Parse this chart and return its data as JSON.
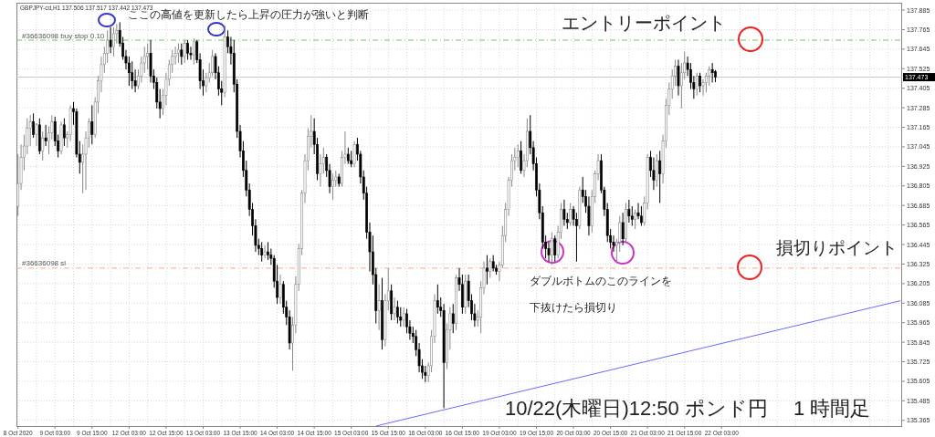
{
  "chart_data": {
    "type": "candlestick",
    "title": "GBPJPY-cd,H1  137.506 137.517 137.442 137.473",
    "categories": [
      "8 Oct 2020",
      null,
      null,
      null,
      null,
      null,
      null,
      null,
      null,
      null,
      null,
      null,
      "9 Oct 03:00",
      null,
      null,
      null,
      null,
      null,
      null,
      null,
      null,
      null,
      null,
      null,
      "9 Oct 15:00",
      null,
      null,
      null,
      null,
      null,
      null,
      null,
      null,
      null,
      null,
      null,
      "12 Oct 03:00",
      null,
      null,
      null,
      null,
      null,
      null,
      null,
      null,
      null,
      null,
      null,
      "12 Oct 15:00",
      null,
      null,
      null,
      null,
      null,
      null,
      null,
      null,
      null,
      null,
      null,
      "13 Oct 03:00",
      null,
      null,
      null,
      null,
      null,
      null,
      null,
      null,
      null,
      null,
      null,
      "13 Oct 15:00",
      null,
      null,
      null,
      null,
      null,
      null,
      null,
      null,
      null,
      null,
      null,
      "14 Oct 03:00",
      null,
      null,
      null,
      null,
      null,
      null,
      null,
      null,
      null,
      null,
      null,
      "14 Oct 15:00",
      null,
      null,
      null,
      null,
      null,
      null,
      null,
      null,
      null,
      null,
      null,
      "15 Oct 03:00",
      null,
      null,
      null,
      null,
      null,
      null,
      null,
      null,
      null,
      null,
      null,
      "15 Oct 15:00",
      null,
      null,
      null,
      null,
      null,
      null,
      null,
      null,
      null,
      null,
      null,
      "16 Oct 03:00",
      null,
      null,
      null,
      null,
      null,
      null,
      null,
      null,
      null,
      null,
      null,
      "16 Oct 15:00",
      null,
      null,
      null,
      null,
      null,
      null,
      null,
      null,
      null,
      null,
      null,
      "19 Oct 03:00",
      null,
      null,
      null,
      null,
      null,
      null,
      null,
      null,
      null,
      null,
      null,
      "19 Oct 15:00",
      null,
      null,
      null,
      null,
      null,
      null,
      null,
      null,
      null,
      null,
      null,
      "20 Oct 03:00",
      null,
      null,
      null,
      null,
      null,
      null,
      null,
      null,
      null,
      null,
      null,
      "20 Oct 15:00",
      null,
      null,
      null,
      null,
      null,
      null,
      null,
      null,
      null,
      null,
      null,
      "21 Oct 03:00",
      null,
      null,
      null,
      null,
      null,
      null,
      null,
      null,
      null,
      null,
      null,
      "21 Oct 15:00",
      null,
      null,
      null,
      null,
      null,
      null,
      null,
      null,
      null,
      null,
      null,
      "22 Oct 03:00",
      null,
      null,
      null,
      null,
      null,
      null,
      null,
      null,
      null,
      null,
      null,
      null,
      null,
      null,
      null,
      null,
      null,
      null,
      null,
      null,
      null,
      null,
      null,
      null,
      null,
      null,
      null,
      null,
      null,
      null,
      null,
      null,
      null,
      null,
      null,
      null,
      null,
      null,
      null,
      null,
      null,
      null,
      null,
      null,
      null,
      null,
      null,
      null,
      null,
      null,
      null,
      null,
      null,
      null,
      null,
      null,
      null,
      null
    ],
    "ohlc": [
      [
        136.68,
        137.0,
        136.62,
        136.82
      ],
      [
        136.82,
        137.06,
        136.78,
        136.98
      ],
      [
        136.98,
        137.12,
        136.9,
        137.05
      ],
      [
        137.05,
        137.22,
        137.0,
        137.16
      ],
      [
        137.16,
        137.24,
        137.05,
        137.2
      ],
      [
        137.2,
        137.25,
        137.1,
        137.12
      ],
      [
        137.12,
        137.19,
        137.05,
        137.18
      ],
      [
        137.18,
        137.22,
        137.0,
        137.02
      ],
      [
        137.02,
        137.14,
        136.96,
        137.1
      ],
      [
        137.1,
        137.18,
        137.05,
        137.08
      ],
      [
        137.08,
        137.17,
        137.0,
        137.13
      ],
      [
        137.13,
        137.24,
        137.09,
        137.2
      ],
      [
        137.2,
        137.23,
        137.05,
        137.08
      ],
      [
        137.08,
        137.12,
        136.98,
        137.02
      ],
      [
        137.02,
        137.2,
        137.0,
        137.18
      ],
      [
        137.18,
        137.22,
        137.05,
        137.1
      ],
      [
        137.1,
        137.14,
        137.04,
        137.12
      ],
      [
        137.12,
        137.3,
        137.08,
        137.28
      ],
      [
        137.28,
        137.32,
        137.18,
        137.26
      ],
      [
        137.26,
        137.28,
        136.98,
        137.0
      ],
      [
        137.0,
        137.08,
        136.88,
        136.95
      ],
      [
        136.95,
        137.06,
        136.76,
        137.0
      ],
      [
        137.0,
        137.14,
        136.78,
        137.1
      ],
      [
        137.1,
        137.22,
        137.04,
        137.2
      ],
      [
        137.2,
        137.3,
        137.06,
        137.12
      ],
      [
        137.12,
        137.35,
        137.1,
        137.32
      ],
      [
        137.32,
        137.48,
        137.25,
        137.45
      ],
      [
        137.45,
        137.6,
        137.38,
        137.55
      ],
      [
        137.55,
        137.66,
        137.5,
        137.62
      ],
      [
        137.62,
        137.76,
        137.56,
        137.7
      ],
      [
        137.7,
        137.78,
        137.62,
        137.66
      ],
      [
        137.66,
        137.78,
        137.6,
        137.74
      ],
      [
        137.74,
        137.8,
        137.68,
        137.76
      ],
      [
        137.76,
        137.81,
        137.66,
        137.68
      ],
      [
        137.68,
        137.72,
        137.58,
        137.6
      ],
      [
        137.6,
        137.64,
        137.52,
        137.56
      ],
      [
        137.56,
        137.6,
        137.42,
        137.5
      ],
      [
        137.5,
        137.57,
        137.4,
        137.45
      ],
      [
        137.45,
        137.52,
        137.38,
        137.42
      ],
      [
        137.42,
        137.52,
        137.4,
        137.48
      ],
      [
        137.48,
        137.6,
        137.44,
        137.56
      ],
      [
        137.56,
        137.66,
        137.5,
        137.6
      ],
      [
        137.6,
        137.68,
        137.52,
        137.62
      ],
      [
        137.62,
        137.7,
        137.44,
        137.48
      ],
      [
        137.48,
        137.52,
        137.4,
        137.44
      ],
      [
        137.44,
        137.47,
        137.28,
        137.32
      ],
      [
        137.32,
        137.4,
        137.22,
        137.28
      ],
      [
        137.28,
        137.4,
        137.24,
        137.36
      ],
      [
        137.36,
        137.5,
        137.3,
        137.46
      ],
      [
        137.46,
        137.58,
        137.42,
        137.55
      ],
      [
        137.55,
        137.64,
        137.5,
        137.6
      ],
      [
        137.6,
        137.66,
        137.55,
        137.62
      ],
      [
        137.62,
        137.68,
        137.56,
        137.64
      ],
      [
        137.64,
        137.68,
        137.55,
        137.6
      ],
      [
        137.6,
        137.7,
        137.56,
        137.68
      ],
      [
        137.68,
        137.7,
        137.58,
        137.62
      ],
      [
        137.62,
        137.66,
        137.58,
        137.61
      ],
      [
        137.61,
        137.71,
        137.55,
        137.69
      ],
      [
        137.69,
        137.7,
        137.56,
        137.58
      ],
      [
        137.58,
        137.62,
        137.4,
        137.45
      ],
      [
        137.45,
        137.52,
        137.36,
        137.42
      ],
      [
        137.42,
        137.5,
        137.38,
        137.47
      ],
      [
        137.47,
        137.56,
        137.44,
        137.5
      ],
      [
        137.5,
        137.64,
        137.48,
        137.6
      ],
      [
        137.6,
        137.62,
        137.46,
        137.5
      ],
      [
        137.5,
        137.54,
        137.36,
        137.4
      ],
      [
        137.4,
        137.45,
        137.3,
        137.38
      ],
      [
        137.38,
        137.79,
        137.35,
        137.72
      ],
      [
        137.72,
        137.76,
        137.62,
        137.66
      ],
      [
        137.66,
        137.72,
        137.55,
        137.62
      ],
      [
        137.62,
        137.7,
        137.38,
        137.43
      ],
      [
        137.43,
        137.46,
        137.1,
        137.14
      ],
      [
        137.14,
        137.18,
        136.98,
        137.02
      ],
      [
        137.02,
        137.08,
        136.86,
        136.9
      ],
      [
        136.9,
        136.96,
        136.74,
        136.78
      ],
      [
        136.78,
        136.82,
        136.62,
        136.66
      ],
      [
        136.66,
        136.7,
        136.5,
        136.56
      ],
      [
        136.56,
        136.6,
        136.4,
        136.44
      ],
      [
        136.44,
        136.48,
        136.38,
        136.42
      ],
      [
        136.42,
        136.46,
        136.34,
        136.38
      ],
      [
        136.38,
        136.44,
        136.36,
        136.4
      ],
      [
        136.4,
        136.46,
        136.35,
        136.38
      ],
      [
        136.38,
        136.42,
        136.32,
        136.36
      ],
      [
        136.36,
        136.38,
        136.18,
        136.22
      ],
      [
        136.22,
        136.32,
        136.08,
        136.12
      ],
      [
        136.12,
        136.26,
        136.08,
        136.2
      ],
      [
        136.2,
        136.22,
        136.02,
        136.06
      ],
      [
        136.06,
        136.1,
        135.95,
        136.0
      ],
      [
        136.0,
        136.04,
        135.8,
        135.84
      ],
      [
        135.84,
        136.0,
        135.67,
        135.95
      ],
      [
        135.95,
        136.25,
        135.9,
        136.2
      ],
      [
        136.2,
        136.45,
        136.16,
        136.42
      ],
      [
        136.42,
        136.78,
        136.38,
        136.76
      ],
      [
        136.76,
        137.0,
        136.7,
        136.96
      ],
      [
        136.96,
        137.16,
        136.9,
        137.11
      ],
      [
        137.11,
        137.24,
        137.04,
        137.14
      ],
      [
        137.14,
        137.22,
        137.0,
        137.06
      ],
      [
        137.06,
        137.1,
        136.84,
        136.88
      ],
      [
        136.88,
        137.0,
        136.8,
        136.94
      ],
      [
        136.94,
        137.04,
        136.88,
        136.98
      ],
      [
        136.98,
        137.0,
        136.86,
        136.9
      ],
      [
        136.9,
        136.94,
        136.76,
        136.8
      ],
      [
        136.8,
        136.88,
        136.72,
        136.84
      ],
      [
        136.84,
        136.9,
        136.8,
        136.86
      ],
      [
        136.86,
        136.88,
        136.8,
        136.82
      ],
      [
        136.82,
        137.02,
        136.8,
        136.98
      ],
      [
        136.98,
        137.14,
        136.94,
        137.0
      ],
      [
        137.0,
        137.04,
        136.94,
        136.96
      ],
      [
        136.96,
        137.02,
        136.92,
        136.94
      ],
      [
        136.94,
        137.08,
        136.92,
        137.06
      ],
      [
        137.06,
        137.1,
        136.96,
        137.0
      ],
      [
        137.0,
        137.02,
        136.82,
        136.86
      ],
      [
        136.86,
        136.9,
        136.72,
        136.76
      ],
      [
        136.76,
        136.8,
        136.48,
        136.52
      ],
      [
        136.52,
        136.58,
        136.28,
        136.4
      ],
      [
        136.4,
        136.5,
        136.2,
        136.26
      ],
      [
        136.26,
        136.3,
        135.96,
        136.04
      ],
      [
        136.04,
        136.2,
        135.92,
        136.1
      ],
      [
        136.1,
        136.24,
        135.8,
        135.86
      ],
      [
        135.86,
        136.14,
        135.82,
        136.1
      ],
      [
        136.1,
        136.3,
        136.04,
        136.16
      ],
      [
        136.16,
        136.2,
        135.98,
        136.02
      ],
      [
        136.02,
        136.12,
        135.98,
        136.06
      ],
      [
        136.06,
        136.1,
        135.96,
        136.0
      ],
      [
        136.0,
        136.06,
        135.94,
        135.98
      ],
      [
        135.98,
        136.06,
        135.94,
        136.02
      ],
      [
        136.02,
        136.05,
        135.9,
        135.94
      ],
      [
        135.94,
        135.98,
        135.86,
        135.9
      ],
      [
        135.9,
        135.94,
        135.84,
        135.88
      ],
      [
        135.88,
        135.92,
        135.76,
        135.8
      ],
      [
        135.8,
        135.84,
        135.66,
        135.7
      ],
      [
        135.7,
        135.74,
        135.62,
        135.66
      ],
      [
        135.66,
        135.7,
        135.6,
        135.64
      ],
      [
        135.64,
        135.72,
        135.6,
        135.7
      ],
      [
        135.7,
        135.92,
        135.66,
        135.88
      ],
      [
        135.88,
        136.14,
        135.84,
        136.1
      ],
      [
        136.1,
        136.2,
        136.02,
        136.06
      ],
      [
        136.06,
        136.12,
        136.0,
        136.04
      ],
      [
        136.04,
        136.08,
        135.44,
        135.72
      ],
      [
        135.72,
        135.96,
        135.68,
        135.92
      ],
      [
        135.92,
        136.06,
        135.8,
        136.02
      ],
      [
        136.02,
        136.08,
        135.9,
        135.96
      ],
      [
        135.96,
        136.26,
        135.92,
        136.24
      ],
      [
        136.24,
        136.3,
        136.16,
        136.2
      ],
      [
        136.2,
        136.26,
        136.02,
        136.06
      ],
      [
        136.06,
        136.26,
        136.02,
        136.22
      ],
      [
        136.22,
        136.26,
        136.06,
        136.1
      ],
      [
        136.1,
        136.14,
        135.98,
        136.02
      ],
      [
        136.02,
        136.08,
        135.94,
        135.98
      ],
      [
        135.98,
        136.04,
        135.94,
        136.0
      ],
      [
        136.0,
        136.22,
        135.9,
        136.18
      ],
      [
        136.18,
        136.34,
        136.14,
        136.3
      ],
      [
        136.3,
        136.38,
        136.2,
        136.28
      ],
      [
        136.28,
        136.36,
        136.24,
        136.34
      ],
      [
        136.34,
        136.38,
        136.28,
        136.3
      ],
      [
        136.3,
        136.32,
        136.26,
        136.28
      ],
      [
        136.28,
        136.34,
        136.22,
        136.32
      ],
      [
        136.32,
        136.56,
        136.3,
        136.5
      ],
      [
        136.5,
        136.7,
        136.46,
        136.66
      ],
      [
        136.66,
        136.86,
        136.62,
        136.84
      ],
      [
        136.84,
        137.0,
        136.8,
        136.96
      ],
      [
        136.96,
        137.04,
        136.9,
        136.98
      ],
      [
        136.98,
        137.06,
        136.92,
        137.02
      ],
      [
        137.02,
        137.08,
        136.88,
        136.9
      ],
      [
        136.9,
        137.0,
        136.86,
        136.96
      ],
      [
        136.96,
        137.22,
        136.92,
        137.14
      ],
      [
        137.14,
        137.24,
        137.0,
        137.04
      ],
      [
        137.04,
        137.08,
        136.9,
        136.94
      ],
      [
        136.94,
        136.98,
        136.74,
        136.78
      ],
      [
        136.78,
        136.82,
        136.6,
        136.64
      ],
      [
        136.64,
        136.68,
        136.42,
        136.46
      ],
      [
        136.46,
        136.5,
        136.36,
        136.42
      ],
      [
        136.42,
        136.46,
        136.34,
        136.38
      ],
      [
        136.38,
        136.52,
        136.32,
        136.48
      ],
      [
        136.48,
        136.5,
        136.34,
        136.38
      ],
      [
        136.38,
        136.56,
        136.36,
        136.52
      ],
      [
        136.52,
        136.7,
        136.48,
        136.66
      ],
      [
        136.66,
        136.72,
        136.56,
        136.6
      ],
      [
        136.6,
        136.64,
        136.54,
        136.58
      ],
      [
        136.58,
        136.7,
        136.56,
        136.66
      ],
      [
        136.66,
        136.68,
        136.56,
        136.6
      ],
      [
        136.6,
        136.64,
        136.34,
        136.56
      ],
      [
        136.56,
        136.8,
        136.54,
        136.78
      ],
      [
        136.78,
        136.86,
        136.7,
        136.74
      ],
      [
        136.74,
        136.78,
        136.64,
        136.68
      ],
      [
        136.68,
        136.74,
        136.5,
        136.56
      ],
      [
        136.56,
        136.78,
        136.52,
        136.74
      ],
      [
        136.74,
        136.9,
        136.7,
        136.88
      ],
      [
        136.88,
        137.0,
        136.84,
        136.96
      ],
      [
        136.96,
        137.0,
        136.76,
        136.78
      ],
      [
        136.78,
        136.8,
        136.62,
        136.66
      ],
      [
        136.66,
        136.7,
        136.46,
        136.5
      ],
      [
        136.5,
        136.54,
        136.42,
        136.46
      ],
      [
        136.46,
        136.5,
        136.4,
        136.44
      ],
      [
        136.44,
        136.48,
        136.33,
        136.46
      ],
      [
        136.46,
        136.62,
        136.4,
        136.58
      ],
      [
        136.58,
        136.64,
        136.44,
        136.48
      ],
      [
        136.48,
        136.7,
        136.46,
        136.66
      ],
      [
        136.66,
        136.72,
        136.58,
        136.62
      ],
      [
        136.62,
        136.68,
        136.56,
        136.6
      ],
      [
        136.6,
        136.66,
        136.54,
        136.64
      ],
      [
        136.64,
        136.7,
        136.6,
        136.62
      ],
      [
        136.62,
        136.68,
        136.56,
        136.58
      ],
      [
        136.58,
        136.74,
        136.56,
        136.7
      ],
      [
        136.7,
        137.0,
        136.66,
        136.98
      ],
      [
        136.98,
        137.02,
        136.86,
        136.9
      ],
      [
        136.9,
        136.98,
        136.78,
        136.84
      ],
      [
        136.84,
        137.0,
        136.8,
        136.96
      ],
      [
        136.96,
        137.02,
        136.7,
        136.88
      ],
      [
        136.88,
        137.12,
        136.82,
        137.08
      ],
      [
        137.08,
        137.34,
        137.04,
        137.3
      ],
      [
        137.3,
        137.44,
        137.24,
        137.4
      ],
      [
        137.4,
        137.52,
        137.34,
        137.48
      ],
      [
        137.48,
        137.58,
        137.42,
        137.54
      ],
      [
        137.54,
        137.58,
        137.36,
        137.42
      ],
      [
        137.42,
        137.56,
        137.28,
        137.5
      ],
      [
        137.5,
        137.63,
        137.46,
        137.56
      ],
      [
        137.56,
        137.6,
        137.48,
        137.52
      ],
      [
        137.52,
        137.56,
        137.4,
        137.44
      ],
      [
        137.44,
        137.48,
        137.34,
        137.4
      ],
      [
        137.4,
        137.5,
        137.36,
        137.48
      ],
      [
        137.48,
        137.5,
        137.38,
        137.42
      ],
      [
        137.42,
        137.46,
        137.36,
        137.44
      ],
      [
        137.44,
        137.5,
        137.38,
        137.48
      ],
      [
        137.48,
        137.54,
        137.42,
        137.52
      ],
      [
        137.52,
        137.56,
        137.44,
        137.5
      ],
      [
        137.506,
        137.517,
        137.442,
        137.473
      ],
      null,
      null,
      null,
      null,
      null,
      null,
      null,
      null,
      null,
      null,
      null,
      null,
      null,
      null,
      null,
      null,
      null,
      null,
      null,
      null,
      null,
      null,
      null,
      null,
      null,
      null,
      null,
      null,
      null,
      null,
      null,
      null,
      null,
      null,
      null,
      null,
      null,
      null,
      null,
      null,
      null,
      null,
      null,
      null,
      null,
      null,
      null,
      null,
      null,
      null,
      null,
      null,
      null,
      null,
      null,
      null,
      null,
      null,
      null,
      null
    ],
    "series": [
      {
        "type": "line",
        "color": "#6a6aff",
        "values": [
          null,
          null,
          null,
          null,
          null,
          null,
          null,
          null,
          null,
          null,
          null,
          null,
          null,
          null,
          null,
          null,
          null,
          null,
          null,
          null,
          null,
          null,
          null,
          null,
          null,
          null,
          null,
          null,
          null,
          null,
          null,
          null,
          null,
          null,
          null,
          null,
          null,
          null,
          null,
          null,
          null,
          null,
          null,
          null,
          null,
          null,
          null,
          null,
          null,
          null,
          null,
          null,
          null,
          null,
          null,
          null,
          null,
          null,
          null,
          null,
          null,
          null,
          null,
          null,
          null,
          null,
          null,
          null,
          null,
          null,
          null,
          null,
          null,
          null,
          null,
          null,
          null,
          null,
          null,
          null,
          null,
          null,
          null,
          null,
          null,
          null,
          null,
          null,
          null,
          null,
          null,
          null,
          null,
          null,
          null,
          null,
          null,
          null,
          null,
          null,
          null,
          null,
          null,
          null,
          null,
          null,
          null,
          null,
          null,
          null,
          null,
          null,
          null,
          null,
          null,
          null,
          135.33,
          null,
          null,
          null,
          null,
          null,
          null,
          null,
          null,
          null,
          null,
          null,
          null,
          null,
          null,
          null,
          null,
          null,
          null,
          null,
          null,
          null,
          null,
          null,
          null,
          null,
          null,
          null,
          null,
          null,
          null,
          null,
          null,
          null,
          null,
          null,
          null,
          null,
          null,
          null,
          null,
          null,
          null,
          null,
          null,
          null,
          null,
          null,
          null,
          null,
          null,
          null,
          null,
          null,
          null,
          null,
          null,
          null,
          null,
          null,
          null,
          null,
          null,
          null,
          null,
          null,
          null,
          null,
          null,
          null,
          null,
          null,
          null,
          null,
          null,
          null,
          null,
          null,
          null,
          null,
          null,
          null,
          null,
          null,
          null,
          null,
          null,
          null,
          null,
          null,
          null,
          null,
          null,
          null,
          null,
          null,
          null,
          null,
          null,
          null,
          null,
          null,
          null,
          null,
          null,
          null,
          null,
          null,
          null,
          null,
          null,
          null,
          null,
          null,
          null,
          null,
          null,
          null,
          null,
          null,
          null,
          null,
          null,
          null,
          null,
          null,
          null,
          null,
          null,
          null,
          null,
          null,
          null,
          null,
          null,
          null,
          null,
          null,
          null,
          null,
          null,
          null,
          null,
          null,
          null,
          null,
          null,
          null,
          null,
          null,
          null,
          null,
          null,
          null,
          null,
          null,
          null,
          null,
          null,
          null,
          null,
          null,
          null,
          null,
          null,
          null,
          null,
          null,
          null,
          null,
          136.1
        ]
      }
    ],
    "ref_lines": [
      {
        "axis": "y",
        "value": 137.7,
        "label": "#36636098 buy stop 0.10",
        "color": "#66cc66",
        "line_style": "dashed"
      },
      {
        "axis": "y",
        "value": 136.3,
        "label": "#36636098 sl",
        "color": "#ffaa88",
        "line_style": "dashed"
      },
      {
        "axis": "y",
        "value": 137.473,
        "label": "137.473",
        "color": "#c8c8c8",
        "line_style": "solid"
      }
    ],
    "ylim": [
      135.33,
      137.93
    ],
    "yticks": [
      137.885,
      137.765,
      137.645,
      137.525,
      137.405,
      137.285,
      137.165,
      137.045,
      136.925,
      136.805,
      136.685,
      136.565,
      136.445,
      136.325,
      136.205,
      136.085,
      135.965,
      135.845,
      135.725,
      135.605,
      135.485,
      135.365
    ],
    "grid": true,
    "annotations": [
      "ここの高値を更新したら上昇の圧力が強いと判断",
      {
        "text": "エントリーポイント",
        "y": 137.7
      },
      "損切りポイント",
      {
        "text": "ダブルボトムのこのラインを",
        "y": 136.3
      },
      "下抜けたら損切り",
      "10/22(木曜日)12:50 ポンド円　 1 時間足"
    ]
  }
}
